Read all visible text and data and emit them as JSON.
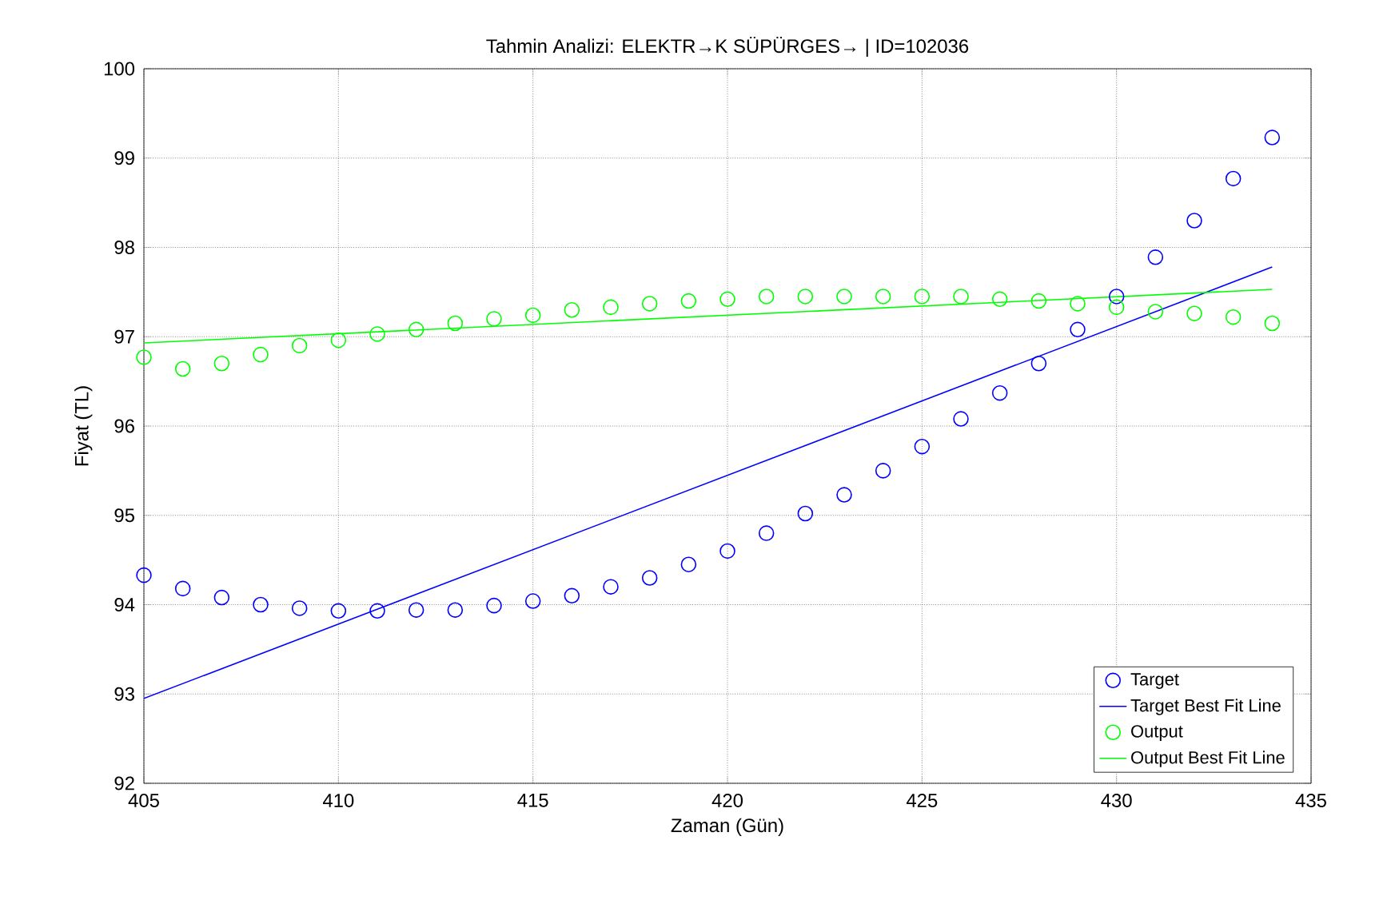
{
  "chart_data": {
    "type": "scatter",
    "title": "Tahmin Analizi: ELEKTR→K SÜPÜRGES→ | ID=102036",
    "xlabel": "Zaman (Gün)",
    "ylabel": "Fiyat (TL)",
    "xlim": [
      405,
      435
    ],
    "xticks": [
      405,
      410,
      415,
      420,
      425,
      430,
      435
    ],
    "ylim": [
      92,
      100
    ],
    "yticks": [
      92,
      93,
      94,
      95,
      96,
      97,
      98,
      99,
      100
    ],
    "grid": true,
    "legend": "bottom right",
    "series": [
      {
        "name": "Target",
        "marker": "circle",
        "color": "#0000ff",
        "x": [
          405,
          406,
          407,
          408,
          409,
          410,
          411,
          412,
          413,
          414,
          415,
          416,
          417,
          418,
          419,
          420,
          421,
          422,
          423,
          424,
          425,
          426,
          427,
          428,
          429,
          430,
          431,
          432,
          433,
          434
        ],
        "values": [
          94.33,
          94.18,
          94.08,
          94.0,
          93.96,
          93.93,
          93.93,
          93.94,
          93.94,
          93.99,
          94.04,
          94.1,
          94.2,
          94.3,
          94.45,
          94.6,
          94.8,
          95.02,
          95.23,
          95.5,
          95.77,
          96.08,
          96.37,
          96.7,
          97.08,
          97.45,
          97.89,
          98.3,
          98.77,
          99.23
        ]
      },
      {
        "name": "Target Best Fit Line",
        "type": "line",
        "marker": "none",
        "line_style": "solid",
        "color": "#0000ff",
        "x": [
          405,
          434
        ],
        "values": [
          92.95,
          97.78
        ]
      },
      {
        "name": "Output",
        "marker": "circle",
        "color": "#00ff00",
        "x": [
          405,
          406,
          407,
          408,
          409,
          410,
          411,
          412,
          413,
          414,
          415,
          416,
          417,
          418,
          419,
          420,
          421,
          422,
          423,
          424,
          425,
          426,
          427,
          428,
          429,
          430,
          431,
          432,
          433,
          434
        ],
        "values": [
          96.77,
          96.64,
          96.7,
          96.8,
          96.9,
          96.96,
          97.03,
          97.08,
          97.15,
          97.2,
          97.24,
          97.3,
          97.33,
          97.37,
          97.4,
          97.42,
          97.45,
          97.45,
          97.45,
          97.45,
          97.45,
          97.45,
          97.42,
          97.4,
          97.37,
          97.33,
          97.28,
          97.26,
          97.22,
          97.15
        ]
      },
      {
        "name": "Output Best Fit Line",
        "type": "line",
        "marker": "none",
        "line_style": "solid",
        "color": "#00ff00",
        "x": [
          405,
          434
        ],
        "values": [
          96.93,
          97.53
        ]
      }
    ]
  }
}
